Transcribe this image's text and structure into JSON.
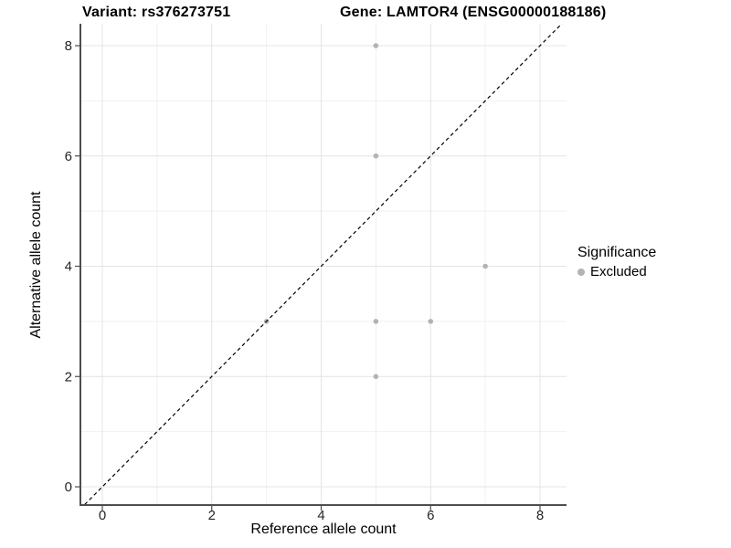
{
  "titles": {
    "variant": "Variant: rs376273751",
    "gene": "Gene: LAMTOR4 (ENSG00000188186)"
  },
  "legend": {
    "title": "Significance",
    "items": [
      {
        "label": "Excluded",
        "color": "#b3b3b3"
      }
    ]
  },
  "chart_data": {
    "type": "scatter",
    "title": "Variant: rs376273751 | Gene: LAMTOR4 (ENSG00000188186)",
    "xlabel": "Reference allele count",
    "ylabel": "Alternative allele count",
    "xlim": [
      -0.4,
      8.48
    ],
    "ylim": [
      -0.33,
      8.4
    ],
    "x_ticks": [
      0,
      2,
      4,
      6,
      8
    ],
    "y_ticks": [
      0,
      2,
      4,
      6,
      8
    ],
    "x_minor_ticks": [
      1,
      3,
      5,
      7
    ],
    "y_minor_ticks": [
      1,
      3,
      5,
      7
    ],
    "grid": true,
    "legend_position": "right",
    "series": [
      {
        "name": "Excluded",
        "color": "#b3b3b3",
        "points": [
          {
            "x": 3,
            "y": 3
          },
          {
            "x": 5,
            "y": 2
          },
          {
            "x": 5,
            "y": 3
          },
          {
            "x": 5,
            "y": 6
          },
          {
            "x": 5,
            "y": 8
          },
          {
            "x": 6,
            "y": 3
          },
          {
            "x": 7,
            "y": 4
          }
        ]
      }
    ],
    "identity_line": {
      "slope": 1,
      "intercept": 0,
      "style": "dashed",
      "color": "#000000"
    },
    "colors": {
      "grid_major": "#e4e4e4",
      "grid_minor": "#f1f1f1",
      "axis_line": "#4d4d4d",
      "tick_label": "#262626",
      "point": "#b3b3b3",
      "dashed_line": "#000000"
    }
  }
}
